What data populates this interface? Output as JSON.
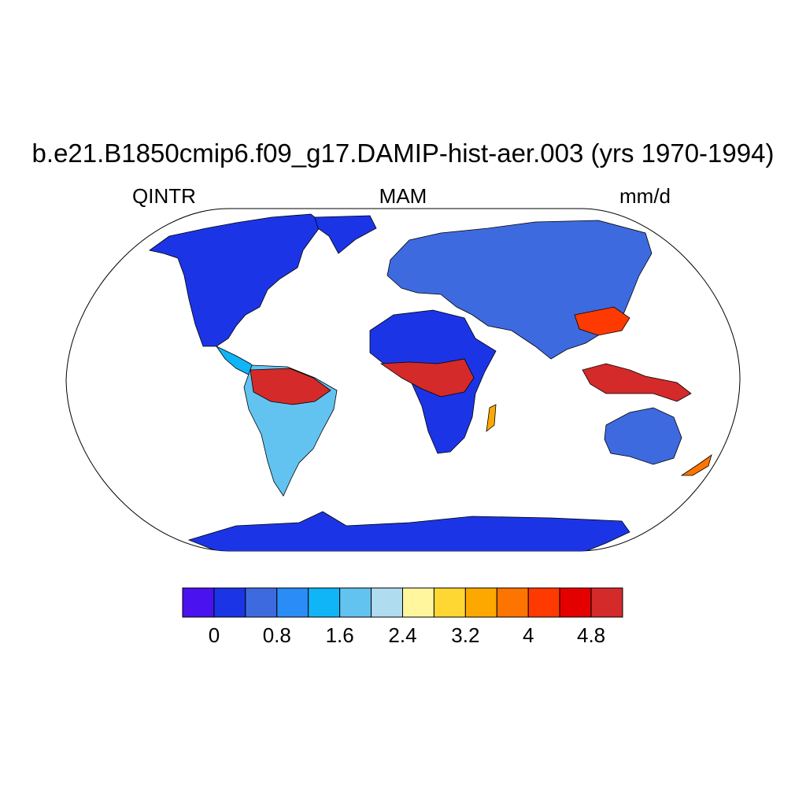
{
  "title": "b.e21.B1850cmip6.f09_g17.DAMIP-hist-aer.003 (yrs 1970-1994)",
  "left_string": "QINTR",
  "center_string": "MAM",
  "right_string": "mm/d",
  "colors": {
    "ocean": "#ffffff",
    "continent_outline": "#000000",
    "bins": [
      "#4a12ee",
      "#1b35e6",
      "#3e6ae0",
      "#2a8cf6",
      "#10b5f7",
      "#62c3f1",
      "#b0dcf0",
      "#fff69d",
      "#ffd732",
      "#fda800",
      "#fd7400",
      "#fe3a00",
      "#e50000",
      "#d42a2a"
    ]
  },
  "colorbar": {
    "levels": [
      -0.4,
      0,
      0.4,
      0.8,
      1.2,
      1.6,
      2.0,
      2.4,
      2.8,
      3.2,
      3.6,
      4.0,
      4.4,
      4.8
    ],
    "tick_labels": [
      "0",
      "0.8",
      "1.6",
      "2.4",
      "3.2",
      "4",
      "4.8"
    ]
  },
  "regions": [
    {
      "name": "Antarctica",
      "bin": 1
    },
    {
      "name": "Amazon",
      "bin": 13
    },
    {
      "name": "Central Africa",
      "bin": 13
    },
    {
      "name": "Maritime Continent",
      "bin": 13
    },
    {
      "name": "South China",
      "bin": 11
    },
    {
      "name": "Sahara",
      "bin": 1
    },
    {
      "name": "Australia interior",
      "bin": 2
    }
  ]
}
